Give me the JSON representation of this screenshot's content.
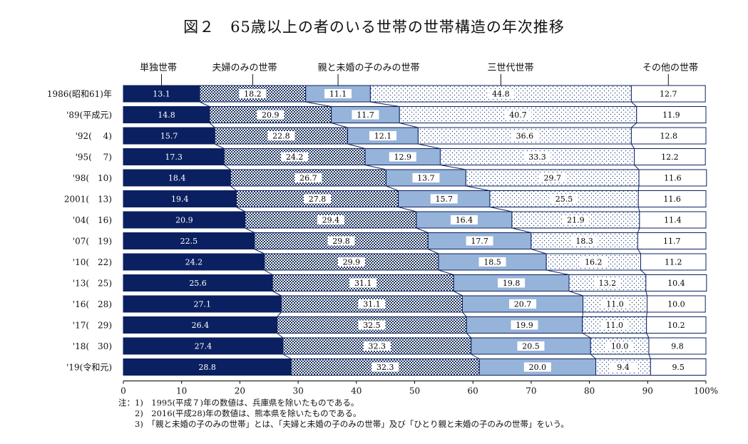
{
  "chart_data": {
    "type": "bar",
    "stacked": true,
    "orientation": "horizontal",
    "title": "図２　65歳以上の者のいる世帯の世帯構造の年次推移",
    "categories": [
      "1986(昭和61)年",
      "'89(平成元)",
      "'92(　 4)",
      "'95(　 7)",
      "'98(　10)",
      "2001(　13)",
      "'04(　16)",
      "'07(　19)",
      "'10(　22)",
      "'13(　25)",
      "'16(　28)",
      "'17(　29)",
      "'18(　30)",
      "'19(令和元)"
    ],
    "series": [
      {
        "name": "単独世帯",
        "values": [
          13.1,
          14.8,
          15.7,
          17.3,
          18.4,
          19.4,
          20.9,
          22.5,
          24.2,
          25.6,
          27.1,
          26.4,
          27.4,
          28.8
        ],
        "color": "#0b2060"
      },
      {
        "name": "夫婦のみの世帯",
        "values": [
          18.2,
          20.9,
          22.8,
          24.2,
          26.7,
          27.8,
          29.4,
          29.8,
          29.9,
          31.1,
          31.1,
          32.5,
          32.3,
          32.3
        ],
        "color": "#1e3560"
      },
      {
        "name": "親と未婚の子のみの世帯",
        "values": [
          11.1,
          11.7,
          12.1,
          12.9,
          13.7,
          15.7,
          16.4,
          17.7,
          18.5,
          19.8,
          20.7,
          19.9,
          20.5,
          20.0
        ],
        "color": "#96b3d9"
      },
      {
        "name": "三世代世帯",
        "values": [
          44.8,
          40.7,
          36.6,
          33.3,
          29.7,
          25.5,
          21.9,
          18.3,
          16.2,
          13.2,
          11.0,
          11.0,
          10.0,
          9.4
        ],
        "color": "#ffffff"
      },
      {
        "name": "その他の世帯",
        "values": [
          12.7,
          11.9,
          12.8,
          12.2,
          11.6,
          11.6,
          11.4,
          11.7,
          11.2,
          10.4,
          10.0,
          10.2,
          9.8,
          9.5
        ],
        "color": "#ffffff"
      }
    ],
    "value_labels": [
      [
        "13.1",
        "18.2",
        "11.1",
        "44.8",
        "12.7"
      ],
      [
        "14.8",
        "20.9",
        "11.7",
        "40.7",
        "11.9"
      ],
      [
        "15.7",
        "22.8",
        "12.1",
        "36.6",
        "12.8"
      ],
      [
        "17.3",
        "24.2",
        "12.9",
        "33.3",
        "12.2"
      ],
      [
        "18.4",
        "26.7",
        "13.7",
        "29.7",
        "11.6"
      ],
      [
        "19.4",
        "27.8",
        "15.7",
        "25.5",
        "11.6"
      ],
      [
        "20.9",
        "29.4",
        "16.4",
        "21.9",
        "11.4"
      ],
      [
        "22.5",
        "29.8",
        "17.7",
        "18.3",
        "11.7"
      ],
      [
        "24.2",
        "29.9",
        "18.5",
        "16.2",
        "11.2"
      ],
      [
        "25.6",
        "31.1",
        "19.8",
        "13.2",
        "10.4"
      ],
      [
        "27.1",
        "31.1",
        "20.7",
        "11.0",
        "10.0"
      ],
      [
        "26.4",
        "32.5",
        "19.9",
        "11.0",
        "10.2"
      ],
      [
        "27.4",
        "32.3",
        "20.5",
        "10.0",
        "9.8"
      ],
      [
        "28.8",
        "32.3",
        "20.0",
        "9.4",
        "9.5"
      ]
    ],
    "xlim": [
      0,
      100
    ],
    "xticks": [
      "0",
      "10",
      "20",
      "30",
      "40",
      "50",
      "60",
      "70",
      "80",
      "90",
      "100%"
    ],
    "grid": false,
    "legend_placement": "top"
  },
  "notes": [
    "注：1)　1995(平成７)年の数値は、兵庫県を除いたものである。",
    "　　2)　2016(平成28)年の数値は、熊本県を除いたものである。",
    "　　3)　「親と未婚の子のみの世帯」とは、「夫婦と未婚の子のみの世帯」及び「ひとり親と未婚の子のみの世帯」をいう。"
  ]
}
